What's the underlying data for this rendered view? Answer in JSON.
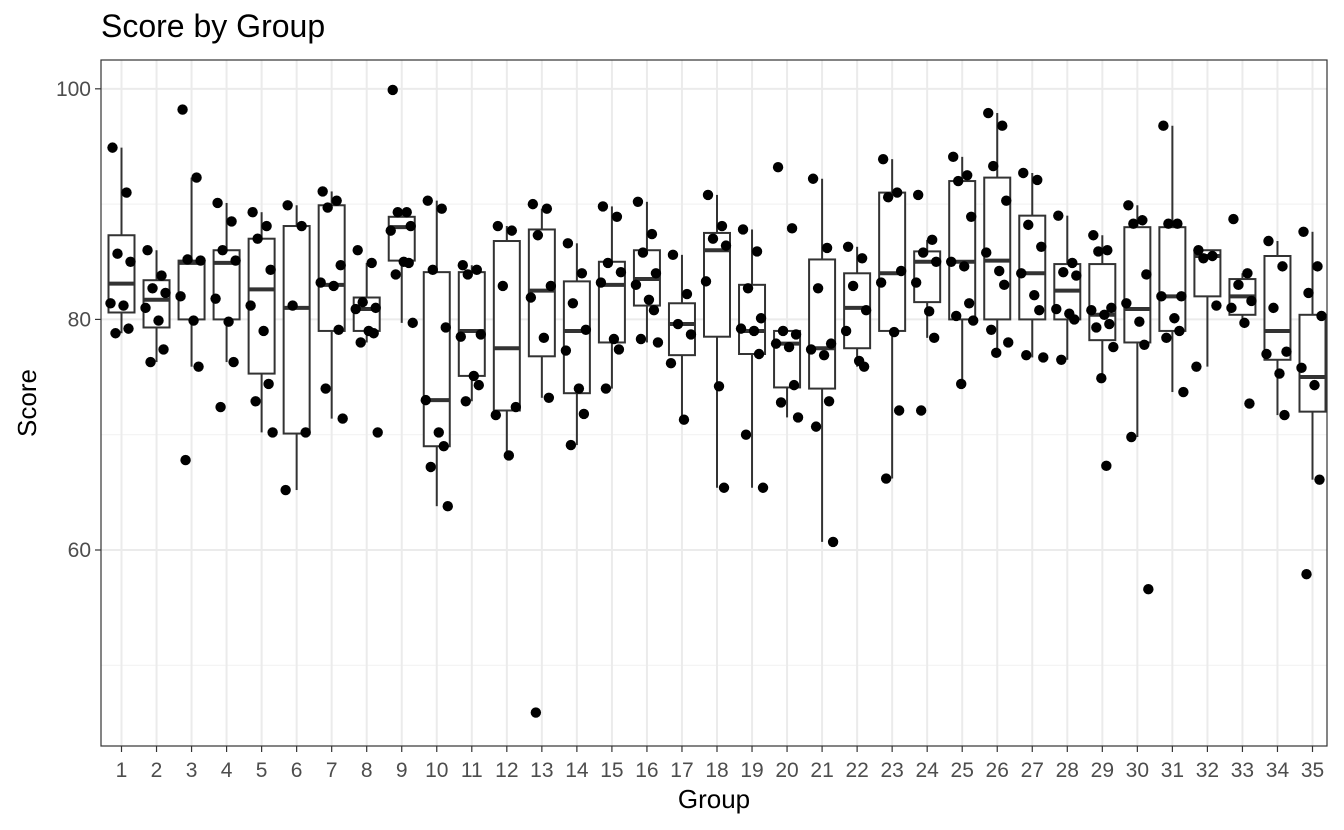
{
  "chart_data": {
    "type": "boxplot",
    "title": "Score by Group",
    "xlabel": "Group",
    "ylabel": "Score",
    "categories": [
      "1",
      "2",
      "3",
      "4",
      "5",
      "6",
      "7",
      "8",
      "9",
      "10",
      "11",
      "12",
      "13",
      "14",
      "15",
      "16",
      "17",
      "18",
      "19",
      "20",
      "21",
      "22",
      "23",
      "24",
      "25",
      "26",
      "27",
      "28",
      "29",
      "30",
      "31",
      "32",
      "33",
      "34",
      "35"
    ],
    "ylim": [
      43,
      102.5
    ],
    "yticks": [
      60,
      80,
      100
    ],
    "grid": true,
    "colors": {
      "box": "#333333",
      "point": "#000000",
      "grid_major": "#ebebeb",
      "grid_minor": "#f3f3f3",
      "panel_border": "#333333"
    },
    "boxes": [
      {
        "group": "1",
        "q1": 80.6,
        "median": 83.1,
        "q3": 87.3,
        "whisker_low": 78.8,
        "whisker_high": 94.9
      },
      {
        "group": "2",
        "q1": 79.3,
        "median": 81.7,
        "q3": 83.4,
        "whisker_low": 76.3,
        "whisker_high": 86.0
      },
      {
        "group": "3",
        "q1": 80.0,
        "median": 84.9,
        "q3": 85.1,
        "whisker_low": 75.9,
        "whisker_high": 92.3
      },
      {
        "group": "4",
        "q1": 80.0,
        "median": 84.9,
        "q3": 86.0,
        "whisker_low": 76.3,
        "whisker_high": 90.1
      },
      {
        "group": "5",
        "q1": 75.3,
        "median": 82.6,
        "q3": 87.0,
        "whisker_low": 70.2,
        "whisker_high": 89.3
      },
      {
        "group": "6",
        "q1": 70.1,
        "median": 81.0,
        "q3": 88.1,
        "whisker_low": 65.2,
        "whisker_high": 89.9
      },
      {
        "group": "7",
        "q1": 79.0,
        "median": 83.0,
        "q3": 89.9,
        "whisker_low": 71.4,
        "whisker_high": 91.1
      },
      {
        "group": "8",
        "q1": 79.0,
        "median": 80.9,
        "q3": 81.9,
        "whisker_low": 78.0,
        "whisker_high": 84.9
      },
      {
        "group": "9",
        "q1": 85.1,
        "median": 88.0,
        "q3": 88.9,
        "whisker_low": 79.7,
        "whisker_high": 89.3
      },
      {
        "group": "10",
        "q1": 69.0,
        "median": 73.0,
        "q3": 84.1,
        "whisker_low": 63.8,
        "whisker_high": 90.3
      },
      {
        "group": "11",
        "q1": 75.1,
        "median": 79.0,
        "q3": 84.1,
        "whisker_low": 72.9,
        "whisker_high": 84.7
      },
      {
        "group": "12",
        "q1": 72.1,
        "median": 77.5,
        "q3": 86.8,
        "whisker_low": 68.2,
        "whisker_high": 88.1
      },
      {
        "group": "13",
        "q1": 76.8,
        "median": 82.5,
        "q3": 87.8,
        "whisker_low": 73.2,
        "whisker_high": 89.6
      },
      {
        "group": "14",
        "q1": 73.6,
        "median": 79.0,
        "q3": 83.3,
        "whisker_low": 69.1,
        "whisker_high": 86.6
      },
      {
        "group": "15",
        "q1": 78.0,
        "median": 83.0,
        "q3": 85.0,
        "whisker_low": 74.0,
        "whisker_high": 89.8
      },
      {
        "group": "16",
        "q1": 81.2,
        "median": 83.5,
        "q3": 86.0,
        "whisker_low": 78.0,
        "whisker_high": 90.2
      },
      {
        "group": "17",
        "q1": 76.9,
        "median": 79.6,
        "q3": 81.4,
        "whisker_low": 71.3,
        "whisker_high": 85.6
      },
      {
        "group": "18",
        "q1": 78.5,
        "median": 86.0,
        "q3": 87.5,
        "whisker_low": 65.4,
        "whisker_high": 90.8
      },
      {
        "group": "19",
        "q1": 77.0,
        "median": 79.0,
        "q3": 83.0,
        "whisker_low": 65.4,
        "whisker_high": 87.8
      },
      {
        "group": "20",
        "q1": 74.1,
        "median": 77.9,
        "q3": 79.0,
        "whisker_low": 71.5,
        "whisker_high": 79.0
      },
      {
        "group": "21",
        "q1": 74.0,
        "median": 77.5,
        "q3": 85.2,
        "whisker_low": 60.7,
        "whisker_high": 92.2
      },
      {
        "group": "22",
        "q1": 77.5,
        "median": 81.0,
        "q3": 84.0,
        "whisker_low": 75.9,
        "whisker_high": 86.3
      },
      {
        "group": "23",
        "q1": 79.0,
        "median": 84.0,
        "q3": 91.0,
        "whisker_low": 66.2,
        "whisker_high": 93.9
      },
      {
        "group": "24",
        "q1": 81.5,
        "median": 85.0,
        "q3": 85.9,
        "whisker_low": 78.4,
        "whisker_high": 86.9
      },
      {
        "group": "25",
        "q1": 80.0,
        "median": 85.0,
        "q3": 92.0,
        "whisker_low": 74.4,
        "whisker_high": 94.1
      },
      {
        "group": "26",
        "q1": 80.0,
        "median": 85.1,
        "q3": 92.3,
        "whisker_low": 77.1,
        "whisker_high": 97.9
      },
      {
        "group": "27",
        "q1": 80.0,
        "median": 84.0,
        "q3": 89.0,
        "whisker_low": 76.7,
        "whisker_high": 92.7
      },
      {
        "group": "28",
        "q1": 80.0,
        "median": 82.5,
        "q3": 84.8,
        "whisker_low": 76.5,
        "whisker_high": 89.0
      },
      {
        "group": "29",
        "q1": 78.2,
        "median": 80.4,
        "q3": 84.8,
        "whisker_low": 74.9,
        "whisker_high": 87.3
      },
      {
        "group": "30",
        "q1": 78.0,
        "median": 80.9,
        "q3": 88.0,
        "whisker_low": 69.8,
        "whisker_high": 89.9
      },
      {
        "group": "31",
        "q1": 79.0,
        "median": 82.0,
        "q3": 88.0,
        "whisker_low": 73.7,
        "whisker_high": 96.8
      },
      {
        "group": "32",
        "q1": 82.0,
        "median": 85.5,
        "q3": 86.0,
        "whisker_low": 75.9,
        "whisker_high": 86.0
      },
      {
        "group": "33",
        "q1": 80.4,
        "median": 82.0,
        "q3": 83.5,
        "whisker_low": 79.7,
        "whisker_high": 84.0
      },
      {
        "group": "34",
        "q1": 76.5,
        "median": 79.0,
        "q3": 85.5,
        "whisker_low": 71.7,
        "whisker_high": 86.8
      },
      {
        "group": "35",
        "q1": 72.0,
        "median": 75.0,
        "q3": 80.4,
        "whisker_low": 66.1,
        "whisker_high": 87.6
      }
    ],
    "points": [
      {
        "group": "1",
        "values": [
          94.9,
          91.0,
          85.7,
          85.0,
          81.4,
          81.2,
          79.2,
          78.8
        ]
      },
      {
        "group": "2",
        "values": [
          86.0,
          83.8,
          82.7,
          82.3,
          81.0,
          79.9,
          77.4,
          76.3
        ]
      },
      {
        "group": "3",
        "values": [
          98.2,
          92.3,
          85.2,
          85.1,
          82.0,
          79.9,
          75.9,
          67.8
        ]
      },
      {
        "group": "4",
        "values": [
          90.1,
          88.5,
          86.0,
          85.1,
          81.8,
          79.8,
          76.3,
          72.4
        ]
      },
      {
        "group": "5",
        "values": [
          89.3,
          88.1,
          87.0,
          84.3,
          81.2,
          79.0,
          74.4,
          72.9,
          70.2
        ]
      },
      {
        "group": "6",
        "values": [
          89.9,
          88.1,
          81.2,
          70.2,
          65.2
        ]
      },
      {
        "group": "7",
        "values": [
          91.1,
          90.3,
          89.7,
          84.7,
          83.2,
          82.9,
          79.1,
          74.0,
          71.4
        ]
      },
      {
        "group": "8",
        "values": [
          86.0,
          84.9,
          81.5,
          81.0,
          80.9,
          79.0,
          78.8,
          78.0,
          70.2
        ]
      },
      {
        "group": "9",
        "values": [
          99.9,
          89.3,
          89.3,
          88.1,
          87.7,
          85.0,
          84.9,
          83.9,
          79.7
        ]
      },
      {
        "group": "10",
        "values": [
          90.3,
          89.6,
          84.3,
          79.3,
          73.0,
          70.2,
          69.0,
          67.2,
          63.8
        ]
      },
      {
        "group": "11",
        "values": [
          84.7,
          84.3,
          83.9,
          78.7,
          78.5,
          75.1,
          74.3,
          72.9
        ]
      },
      {
        "group": "12",
        "values": [
          88.1,
          87.7,
          82.9,
          72.4,
          71.7,
          68.2
        ]
      },
      {
        "group": "13",
        "values": [
          90.0,
          89.6,
          87.3,
          82.9,
          81.9,
          78.4,
          73.2,
          45.9
        ]
      },
      {
        "group": "14",
        "values": [
          86.6,
          84.0,
          81.4,
          79.1,
          77.3,
          74.0,
          71.8,
          69.1
        ]
      },
      {
        "group": "15",
        "values": [
          89.8,
          88.9,
          84.9,
          84.1,
          83.2,
          78.3,
          77.4,
          74.0
        ]
      },
      {
        "group": "16",
        "values": [
          90.2,
          87.4,
          85.8,
          84.0,
          83.0,
          81.7,
          80.8,
          78.3,
          78.0
        ]
      },
      {
        "group": "17",
        "values": [
          85.6,
          82.2,
          79.6,
          78.7,
          76.2,
          71.3
        ]
      },
      {
        "group": "18",
        "values": [
          90.8,
          88.1,
          87.0,
          86.4,
          83.3,
          74.2,
          65.4
        ]
      },
      {
        "group": "19",
        "values": [
          87.8,
          85.9,
          82.7,
          80.1,
          79.2,
          79.0,
          77.0,
          70.0,
          65.4
        ]
      },
      {
        "group": "20",
        "values": [
          93.2,
          87.9,
          79.0,
          78.7,
          77.9,
          77.6,
          74.3,
          72.8,
          71.5
        ]
      },
      {
        "group": "21",
        "values": [
          92.2,
          86.2,
          82.7,
          77.9,
          77.4,
          76.9,
          72.9,
          70.7,
          60.7
        ]
      },
      {
        "group": "22",
        "values": [
          86.3,
          85.3,
          82.9,
          80.8,
          79.0,
          76.4,
          75.9
        ]
      },
      {
        "group": "23",
        "values": [
          93.9,
          91.0,
          90.6,
          84.2,
          83.2,
          78.9,
          72.1,
          66.2
        ]
      },
      {
        "group": "24",
        "values": [
          90.8,
          86.9,
          85.8,
          85.0,
          83.2,
          80.7,
          78.4,
          72.1
        ]
      },
      {
        "group": "25",
        "values": [
          94.1,
          92.5,
          92.0,
          88.9,
          85.0,
          84.6,
          81.4,
          80.3,
          79.9,
          74.4
        ]
      },
      {
        "group": "26",
        "values": [
          97.9,
          96.8,
          93.3,
          90.3,
          85.8,
          84.2,
          83.0,
          79.1,
          78.0,
          77.1
        ]
      },
      {
        "group": "27",
        "values": [
          92.7,
          92.1,
          88.2,
          86.3,
          84.0,
          82.1,
          80.8,
          76.9,
          76.7
        ]
      },
      {
        "group": "28",
        "values": [
          89.0,
          84.9,
          84.1,
          83.8,
          80.9,
          80.5,
          80.0,
          76.5
        ]
      },
      {
        "group": "29",
        "values": [
          87.3,
          86.0,
          85.9,
          81.0,
          80.8,
          80.4,
          79.6,
          79.3,
          77.6,
          74.9,
          67.3
        ]
      },
      {
        "group": "30",
        "values": [
          89.9,
          88.6,
          88.3,
          83.9,
          81.4,
          79.8,
          77.8,
          69.8,
          56.6
        ]
      },
      {
        "group": "31",
        "values": [
          96.8,
          88.3,
          88.3,
          82.0,
          82.0,
          80.1,
          79.0,
          78.4,
          73.7
        ]
      },
      {
        "group": "32",
        "values": [
          86.0,
          85.5,
          85.3,
          81.2,
          75.9
        ]
      },
      {
        "group": "33",
        "values": [
          88.7,
          84.0,
          83.0,
          81.6,
          81.0,
          79.7,
          72.7
        ]
      },
      {
        "group": "34",
        "values": [
          86.8,
          84.6,
          81.0,
          77.2,
          77.0,
          75.3,
          71.7
        ]
      },
      {
        "group": "35",
        "values": [
          87.6,
          84.6,
          82.3,
          80.3,
          75.8,
          74.3,
          66.1,
          57.9
        ]
      }
    ]
  }
}
